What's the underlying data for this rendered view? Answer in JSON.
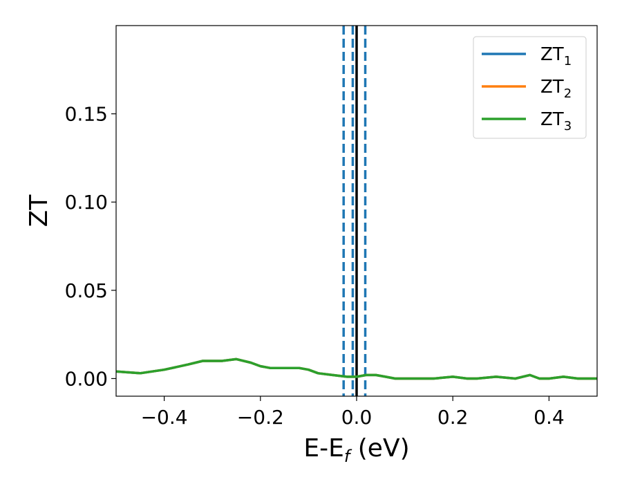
{
  "chart_data": {
    "type": "line",
    "xlabel": "E-E",
    "xlabel_sub": "f",
    "xlabel_unit": " (eV)",
    "ylabel": "ZT",
    "xlim": [
      -0.5,
      0.5
    ],
    "ylim": [
      -0.01,
      0.2
    ],
    "x_ticks": [
      -0.4,
      -0.2,
      0.0,
      0.2,
      0.4
    ],
    "x_tick_labels": [
      "−0.4",
      "−0.2",
      "0.0",
      "0.2",
      "0.4"
    ],
    "y_ticks": [
      0.0,
      0.05,
      0.1,
      0.15
    ],
    "y_tick_labels": [
      "0.00",
      "0.05",
      "0.10",
      "0.15"
    ],
    "grid": false,
    "legend_placement": "top-right",
    "series": [
      {
        "name": "ZT",
        "name_sub": "1",
        "color": "#1f77b4",
        "x": [
          -0.5,
          -0.45,
          -0.4,
          -0.35,
          -0.32,
          -0.3,
          -0.28,
          -0.25,
          -0.22,
          -0.2,
          -0.18,
          -0.14,
          -0.12,
          -0.1,
          -0.08,
          -0.05,
          -0.02,
          0.0,
          0.02,
          0.04,
          0.06,
          0.08,
          0.1,
          0.13,
          0.16,
          0.2,
          0.23,
          0.25,
          0.29,
          0.33,
          0.36,
          0.38,
          0.4,
          0.43,
          0.46,
          0.5
        ],
        "y": [
          0.004,
          0.003,
          0.005,
          0.008,
          0.01,
          0.01,
          0.01,
          0.011,
          0.009,
          0.007,
          0.006,
          0.006,
          0.006,
          0.005,
          0.003,
          0.002,
          0.001,
          0.001,
          0.002,
          0.002,
          0.001,
          0.0,
          0.0,
          0.0,
          0.0,
          0.001,
          0.0,
          0.0,
          0.001,
          0.0,
          0.002,
          0.0,
          0.0,
          0.001,
          0.0,
          0.0
        ]
      },
      {
        "name": "ZT",
        "name_sub": "2",
        "color": "#ff7f0e",
        "x": [
          -0.5,
          -0.45,
          -0.4,
          -0.35,
          -0.32,
          -0.3,
          -0.28,
          -0.25,
          -0.22,
          -0.2,
          -0.18,
          -0.14,
          -0.12,
          -0.1,
          -0.08,
          -0.05,
          -0.02,
          0.0,
          0.02,
          0.04,
          0.06,
          0.08,
          0.1,
          0.13,
          0.16,
          0.2,
          0.23,
          0.25,
          0.29,
          0.33,
          0.36,
          0.38,
          0.4,
          0.43,
          0.46,
          0.5
        ],
        "y": [
          0.004,
          0.003,
          0.005,
          0.008,
          0.01,
          0.01,
          0.01,
          0.011,
          0.009,
          0.007,
          0.006,
          0.006,
          0.006,
          0.005,
          0.003,
          0.002,
          0.001,
          0.001,
          0.002,
          0.002,
          0.001,
          0.0,
          0.0,
          0.0,
          0.0,
          0.001,
          0.0,
          0.0,
          0.001,
          0.0,
          0.002,
          0.0,
          0.0,
          0.001,
          0.0,
          0.0
        ]
      },
      {
        "name": "ZT",
        "name_sub": "3",
        "color": "#2ca02c",
        "x": [
          -0.5,
          -0.45,
          -0.4,
          -0.35,
          -0.32,
          -0.3,
          -0.28,
          -0.25,
          -0.22,
          -0.2,
          -0.18,
          -0.14,
          -0.12,
          -0.1,
          -0.08,
          -0.05,
          -0.02,
          0.0,
          0.02,
          0.04,
          0.06,
          0.08,
          0.1,
          0.13,
          0.16,
          0.2,
          0.23,
          0.25,
          0.29,
          0.33,
          0.36,
          0.38,
          0.4,
          0.43,
          0.46,
          0.5
        ],
        "y": [
          0.004,
          0.003,
          0.005,
          0.008,
          0.01,
          0.01,
          0.01,
          0.011,
          0.009,
          0.007,
          0.006,
          0.006,
          0.006,
          0.005,
          0.003,
          0.002,
          0.001,
          0.001,
          0.002,
          0.002,
          0.001,
          0.0,
          0.0,
          0.0,
          0.0,
          0.001,
          0.0,
          0.0,
          0.001,
          0.0,
          0.002,
          0.0,
          0.0,
          0.001,
          0.0,
          0.0
        ]
      }
    ],
    "vlines": [
      {
        "x": -0.027,
        "style": "dashed",
        "color": "#1f77b4"
      },
      {
        "x": -0.008,
        "style": "dashed",
        "color": "#1f77b4"
      },
      {
        "x": 0.018,
        "style": "dashed",
        "color": "#1f77b4"
      },
      {
        "x": 0.0,
        "style": "solid",
        "color": "#000000"
      }
    ]
  }
}
